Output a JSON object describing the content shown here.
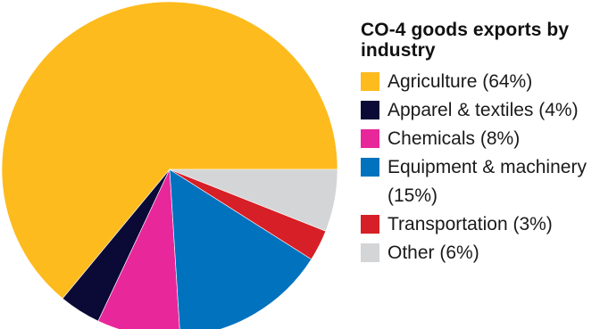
{
  "chart_data": {
    "type": "pie",
    "title": "CO-4 goods exports by industry",
    "categories": [
      "Agriculture",
      "Apparel & textiles",
      "Chemicals",
      "Equipment & machinery",
      "Transportation",
      "Other"
    ],
    "values": [
      64,
      4,
      8,
      15,
      3,
      6
    ],
    "unit": "%",
    "colors": [
      "#FDBB1E",
      "#0B0A36",
      "#E8279B",
      "#0172BE",
      "#D61F26",
      "#D4D5D7"
    ],
    "start_angle_degrees": 0,
    "direction": "counterclockwise",
    "legend_position": "right",
    "legend": [
      {
        "label": "Agriculture (64%)",
        "color": "#FDBB1E"
      },
      {
        "label": "Apparel & textiles (4%)",
        "color": "#0B0A36"
      },
      {
        "label": "Chemicals (8%)",
        "color": "#E8279B"
      },
      {
        "label": "Equipment & machinery (15%)",
        "color": "#0172BE"
      },
      {
        "label": "Transportation (3%)",
        "color": "#D61F26"
      },
      {
        "label": "Other (6%)",
        "color": "#D4D5D7"
      }
    ]
  }
}
